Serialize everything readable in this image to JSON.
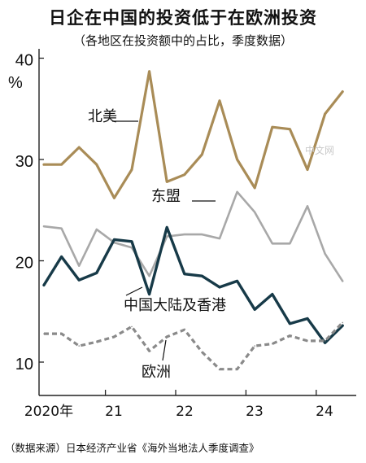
{
  "title": "日企在中国的投资低于在欧洲投资",
  "subtitle": "（各地区在投资额中的占比，季度数据）",
  "source": "（数据来源）日本经济产业省《海外当地法人季度调查》",
  "watermark": "中文网",
  "colors": {
    "north_america": "#a98c57",
    "asean": "#a8a8a8",
    "china_hk": "#173a48",
    "europe": "#8a8a8a",
    "axis": "#222222",
    "grid": "#d0d0d0"
  },
  "chart_data": {
    "type": "line",
    "x_ticks": [
      "2020年",
      "21",
      "22",
      "23",
      "24"
    ],
    "y_unit": "%",
    "y_ticks": [
      10,
      20,
      30,
      40
    ],
    "ylim": [
      6,
      41
    ],
    "x": [
      "2020Q1",
      "2020Q2",
      "2020Q3",
      "2020Q4",
      "2021Q1",
      "2021Q2",
      "2021Q3",
      "2021Q4",
      "2022Q1",
      "2022Q2",
      "2022Q3",
      "2022Q4",
      "2023Q1",
      "2023Q2",
      "2023Q3",
      "2023Q4",
      "2024Q1",
      "2024Q2"
    ],
    "series": [
      {
        "name": "北美",
        "key": "north_america",
        "style": "solid",
        "values": [
          29.5,
          29.5,
          31.2,
          29.5,
          26.2,
          29.0,
          38.7,
          27.8,
          28.5,
          30.5,
          35.8,
          30.0,
          27.2,
          33.2,
          33.0,
          29.0,
          34.5,
          36.7
        ]
      },
      {
        "name": "东盟",
        "key": "asean",
        "style": "solid",
        "values": [
          23.4,
          23.2,
          19.5,
          23.1,
          21.8,
          21.3,
          18.5,
          22.4,
          22.6,
          22.6,
          22.2,
          26.8,
          24.8,
          21.7,
          21.7,
          25.4,
          20.7,
          18.0
        ]
      },
      {
        "name": "中国大陆及香港",
        "key": "china_hk",
        "style": "solid",
        "values": [
          17.6,
          20.4,
          18.1,
          18.8,
          22.1,
          21.9,
          16.7,
          23.3,
          18.7,
          18.5,
          17.4,
          18.0,
          15.2,
          16.7,
          13.8,
          14.3,
          11.9,
          13.6
        ]
      },
      {
        "name": "欧洲",
        "key": "europe",
        "style": "dashed",
        "values": [
          12.8,
          12.8,
          11.6,
          12.0,
          12.5,
          13.5,
          11.1,
          12.5,
          13.2,
          11.0,
          9.3,
          9.3,
          11.6,
          11.8,
          12.6,
          12.1,
          12.1,
          13.9
        ]
      }
    ]
  }
}
